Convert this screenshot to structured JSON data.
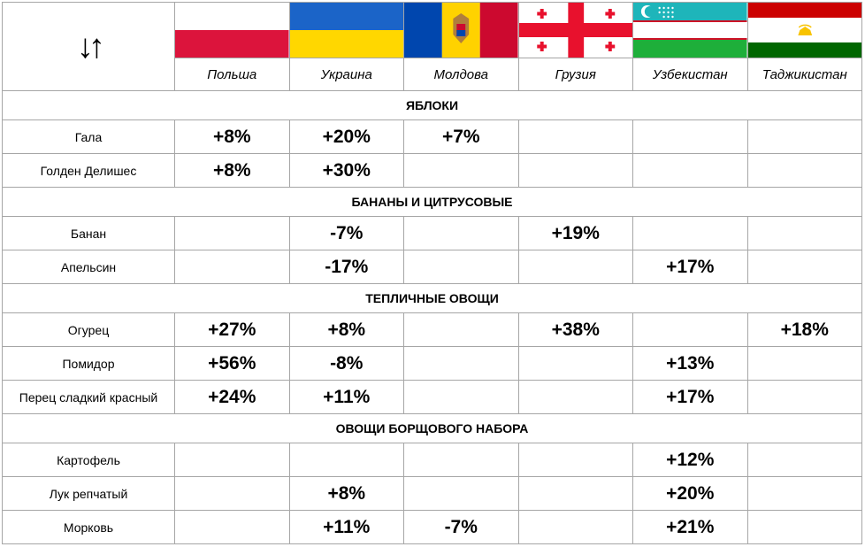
{
  "header": {
    "sort_icon": "sort-up-down-arrows",
    "sort_glyph": "↓↑",
    "countries": [
      {
        "name": "Польша",
        "flag": "poland-flag"
      },
      {
        "name": "Украина",
        "flag": "ukraine-flag"
      },
      {
        "name": "Молдова",
        "flag": "moldova-flag"
      },
      {
        "name": "Грузия",
        "flag": "georgia-flag"
      },
      {
        "name": "Узбекистан",
        "flag": "uzbekistan-flag"
      },
      {
        "name": "Таджикистан",
        "flag": "tajikistan-flag"
      }
    ]
  },
  "colors": {
    "positive": "#1fb04c",
    "negative": "#e8141b",
    "grid": "#a6a6a6"
  },
  "sections": [
    {
      "title": "ЯБЛОКИ",
      "rows": [
        {
          "label": "Гала",
          "values": [
            "+8%",
            "+20%",
            "+7%",
            "",
            "",
            ""
          ]
        },
        {
          "label": "Голден Делишес",
          "values": [
            "+8%",
            "+30%",
            "",
            "",
            "",
            ""
          ]
        }
      ]
    },
    {
      "title": "БАНАНЫ И ЦИТРУСОВЫЕ",
      "rows": [
        {
          "label": "Банан",
          "values": [
            "",
            "-7%",
            "",
            "+19%",
            "",
            ""
          ]
        },
        {
          "label": "Апельсин",
          "values": [
            "",
            "-17%",
            "",
            "",
            "+17%",
            ""
          ]
        }
      ]
    },
    {
      "title": "ТЕПЛИЧНЫЕ ОВОЩИ",
      "rows": [
        {
          "label": "Огурец",
          "values": [
            "+27%",
            "+8%",
            "",
            "+38%",
            "",
            "+18%"
          ]
        },
        {
          "label": "Помидор",
          "values": [
            "+56%",
            "-8%",
            "",
            "",
            "+13%",
            ""
          ]
        },
        {
          "label": "Перец сладкий красный",
          "values": [
            "+24%",
            "+11%",
            "",
            "",
            "+17%",
            ""
          ]
        }
      ]
    },
    {
      "title": "ОВОЩИ БОРЩОВОГО НАБОРА",
      "rows": [
        {
          "label": "Картофель",
          "values": [
            "",
            "",
            "",
            "",
            "+12%",
            ""
          ]
        },
        {
          "label": "Лук репчатый",
          "values": [
            "",
            "+8%",
            "",
            "",
            "+20%",
            ""
          ]
        },
        {
          "label": "Морковь",
          "values": [
            "",
            "+11%",
            "-7%",
            "",
            "+21%",
            ""
          ]
        }
      ]
    }
  ]
}
